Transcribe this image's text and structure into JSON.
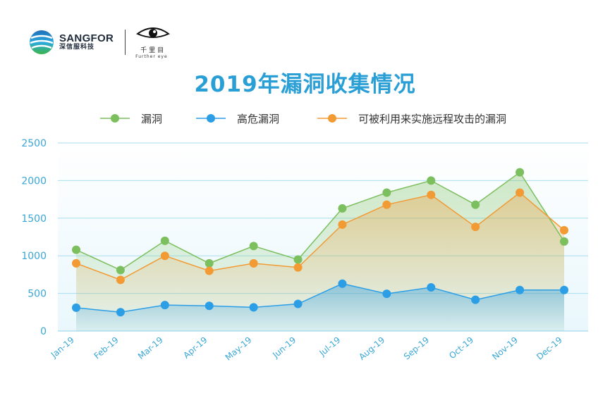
{
  "header": {
    "brand_name": "SANGFOR",
    "brand_sub": "深信服科技",
    "partner_cn": "千里目",
    "partner_sub": "Further eye"
  },
  "colors": {
    "series1": "#7cbf5e",
    "series2": "#2b9ee6",
    "series3": "#f29a34",
    "axis_text": "#3aa7d6",
    "title": "#2a9fd6"
  },
  "chart_data": {
    "type": "line",
    "title": "2019年漏洞收集情况",
    "categories": [
      "Jan-19",
      "Feb-19",
      "Mar-19",
      "Apr-19",
      "May-19",
      "Jun-19",
      "Jul-19",
      "Aug-19",
      "Sep-19",
      "Oct-19",
      "Nov-19",
      "Dec-19"
    ],
    "series": [
      {
        "name": "漏洞",
        "values": [
          1080,
          810,
          1200,
          900,
          1130,
          950,
          1630,
          1840,
          2000,
          1680,
          2110,
          1190
        ]
      },
      {
        "name": "高危漏洞",
        "values": [
          310,
          250,
          345,
          335,
          315,
          360,
          630,
          495,
          580,
          415,
          545,
          545
        ]
      },
      {
        "name": "可被利用来实施远程攻击的漏洞",
        "values": [
          900,
          680,
          1000,
          800,
          900,
          845,
          1415,
          1680,
          1810,
          1385,
          1840,
          1340
        ]
      }
    ],
    "yticks": [
      0,
      500,
      1000,
      1500,
      2000,
      2500
    ],
    "ylim": [
      0,
      2500
    ],
    "grid": true,
    "legend": "top"
  }
}
